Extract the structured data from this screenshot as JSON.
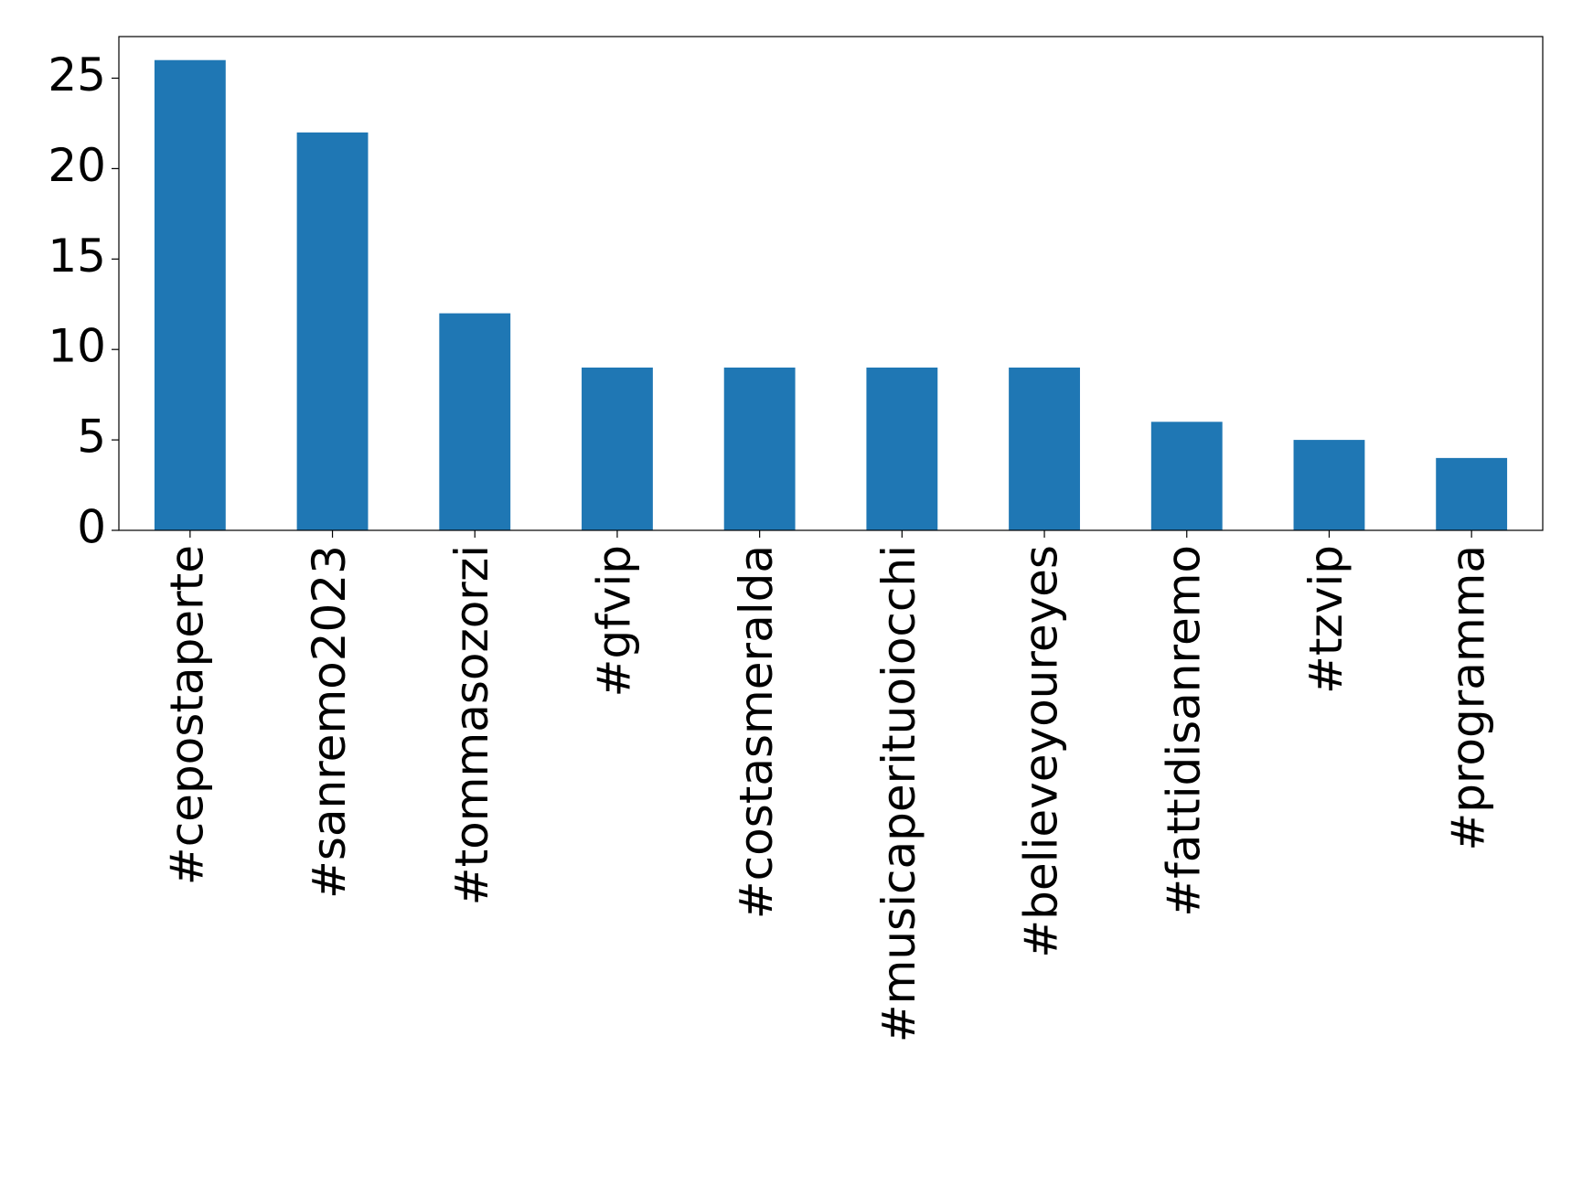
{
  "chart_data": {
    "type": "bar",
    "categories": [
      "#cepostaperte",
      "#sanremo2023",
      "#tommasozorzi",
      "#gfvip",
      "#costasmeralda",
      "#musicaperituoiocchi",
      "#believeyoureyes",
      "#fattidisanremo",
      "#tzvip",
      "#programma"
    ],
    "values": [
      26,
      22,
      12,
      9,
      9,
      9,
      9,
      6,
      5,
      4
    ],
    "color": "#1f77b4",
    "ylim": [
      0,
      27.3
    ],
    "yticks": [
      0,
      5,
      10,
      15,
      20,
      25
    ],
    "grid": false
  }
}
